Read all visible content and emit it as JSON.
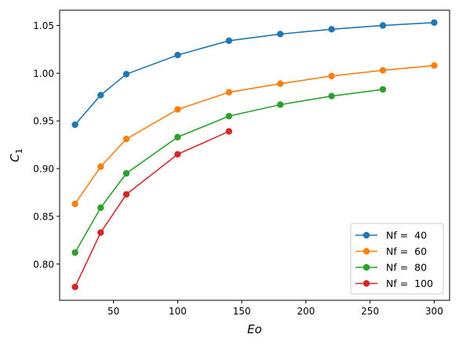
{
  "chart_data": {
    "type": "line",
    "xlabel": "Eo",
    "ylabel_main": "C",
    "ylabel_sub": "1",
    "xlim": [
      8,
      312
    ],
    "ylim": [
      0.762,
      1.066
    ],
    "x_ticks": [
      50,
      100,
      150,
      200,
      250,
      300
    ],
    "y_ticks": [
      0.8,
      0.85,
      0.9,
      0.95,
      1.0,
      1.05
    ],
    "x_tick_labels": [
      "50",
      "100",
      "150",
      "200",
      "250",
      "300"
    ],
    "y_tick_labels": [
      "0.80",
      "0.85",
      "0.90",
      "0.95",
      "1.00",
      "1.05"
    ],
    "legend_position": "lower-right",
    "grid": false,
    "series": [
      {
        "name": "Nf =  40",
        "color": "#1f77b4",
        "x": [
          20,
          40,
          60,
          100,
          140,
          180,
          220,
          260,
          300
        ],
        "y": [
          0.946,
          0.977,
          0.999,
          1.019,
          1.034,
          1.041,
          1.046,
          1.05,
          1.053
        ]
      },
      {
        "name": "Nf =  60",
        "color": "#ff7f0e",
        "x": [
          20,
          40,
          60,
          100,
          140,
          180,
          220,
          260,
          300
        ],
        "y": [
          0.863,
          0.902,
          0.931,
          0.962,
          0.98,
          0.989,
          0.997,
          1.003,
          1.008
        ]
      },
      {
        "name": "Nf =  80",
        "color": "#2ca02c",
        "x": [
          20,
          40,
          60,
          100,
          140,
          180,
          220,
          260
        ],
        "y": [
          0.812,
          0.859,
          0.895,
          0.933,
          0.955,
          0.967,
          0.976,
          0.983
        ]
      },
      {
        "name": "Nf =  100",
        "color": "#d62728",
        "x": [
          20,
          40,
          60,
          100,
          140
        ],
        "y": [
          0.776,
          0.833,
          0.873,
          0.915,
          0.939
        ]
      }
    ]
  }
}
